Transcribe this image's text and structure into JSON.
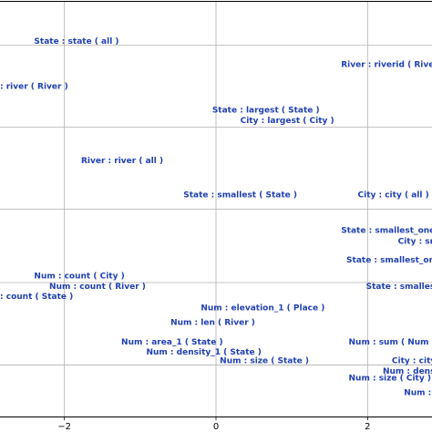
{
  "chart_data": {
    "type": "scatter",
    "title": "",
    "xlabel": "",
    "ylabel": "",
    "xlim": [
      -2.85,
      2.85
    ],
    "ylim": [
      0,
      10
    ],
    "grid": true,
    "x_ticks": [
      {
        "value": -2,
        "label": "−2"
      },
      {
        "value": 0,
        "label": "0"
      },
      {
        "value": 2,
        "label": "2"
      }
    ],
    "y_grid": [
      1.24,
      3.23,
      5.0,
      6.98,
      8.95
    ],
    "label_color": "#1f3fb0",
    "points": [
      {
        "text": "State : state ( all )",
        "x": -2.4,
        "y": 9.05
      },
      {
        "text": "River : riverid ( Riverid )",
        "x": 1.65,
        "y": 8.5
      },
      {
        "text": ": river ( River )",
        "x": -2.85,
        "y": 7.97
      },
      {
        "text": "State : largest ( State )",
        "x": -0.05,
        "y": 7.4
      },
      {
        "text": "City : largest ( City )",
        "x": 0.32,
        "y": 7.14
      },
      {
        "text": "River : river ( all )",
        "x": -1.78,
        "y": 6.18
      },
      {
        "text": "State : smallest ( State )",
        "x": -0.43,
        "y": 5.35
      },
      {
        "text": "City : city ( all )",
        "x": 1.87,
        "y": 5.35
      },
      {
        "text": "State : smallest_one ( State )",
        "x": 1.65,
        "y": 4.5
      },
      {
        "text": "City : smallest ( City )",
        "x": 2.4,
        "y": 4.23
      },
      {
        "text": "State : smallest_one ( City )",
        "x": 1.72,
        "y": 3.78
      },
      {
        "text": "Num : count ( City )",
        "x": -2.4,
        "y": 3.4
      },
      {
        "text": "Num : count ( River )",
        "x": -2.2,
        "y": 3.14
      },
      {
        "text": "State : smallest ( City )",
        "x": 1.98,
        "y": 3.14
      },
      {
        "text": ": count ( State )",
        "x": -2.85,
        "y": 2.9
      },
      {
        "text": "Num : elevation_1 ( Place )",
        "x": -0.2,
        "y": 2.63
      },
      {
        "text": "Num : len ( River )",
        "x": -0.6,
        "y": 2.28
      },
      {
        "text": "Num : area_1 ( State )",
        "x": -1.25,
        "y": 1.8
      },
      {
        "text": "Num : sum ( Num )",
        "x": 1.75,
        "y": 1.8
      },
      {
        "text": "Num : density_1 ( State )",
        "x": -0.92,
        "y": 1.56
      },
      {
        "text": "City : city ( City )",
        "x": 2.32,
        "y": 1.35
      },
      {
        "text": "Num : size ( State )",
        "x": 0.05,
        "y": 1.35
      },
      {
        "text": "Num : density ( City )",
        "x": 2.2,
        "y": 1.1
      },
      {
        "text": "Num : size ( City )",
        "x": 1.75,
        "y": 0.93
      },
      {
        "text": "Num : area ( City )",
        "x": 2.48,
        "y": 0.58
      }
    ]
  }
}
